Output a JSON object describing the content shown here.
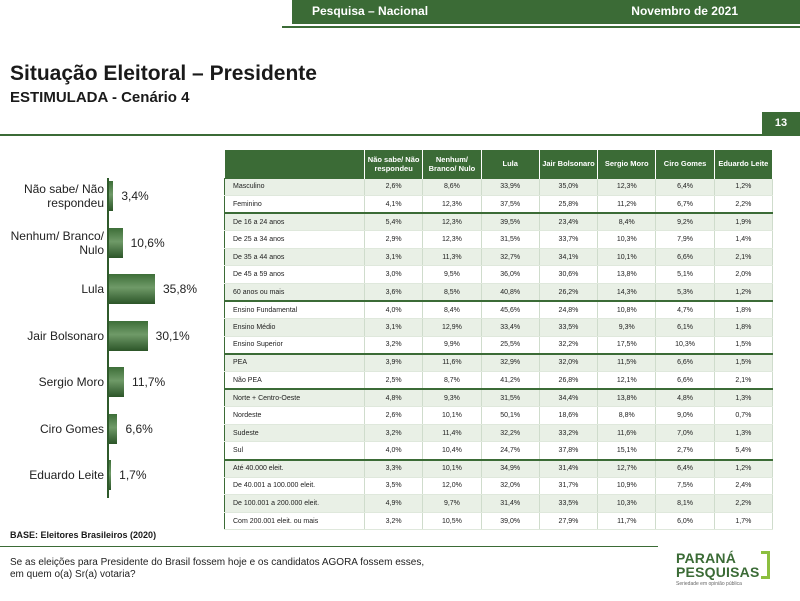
{
  "header": {
    "survey": "Pesquisa – Nacional",
    "date": "Novembro de 2021",
    "page_number": "13"
  },
  "title": "Situação Eleitoral – Presidente",
  "subtitle": "ESTIMULADA - Cenário 4",
  "chart_data": {
    "type": "bar",
    "categories": [
      "Não sabe/ Não respondeu",
      "Nenhum/ Branco/ Nulo",
      "Lula",
      "Jair Bolsonaro",
      "Sergio Moro",
      "Ciro Gomes",
      "Eduardo Leite"
    ],
    "values": [
      3.4,
      10.6,
      35.8,
      30.1,
      11.7,
      6.6,
      1.7
    ],
    "value_labels": [
      "3,4%",
      "10,6%",
      "35,8%",
      "30,1%",
      "11,7%",
      "6,6%",
      "1,7%"
    ],
    "orientation": "horizontal",
    "colors": [
      "#3b6b36"
    ]
  },
  "table": {
    "columns": [
      "Não sabe/ Não respondeu",
      "Nenhum/ Branco/ Nulo",
      "Lula",
      "Jair Bolsonaro",
      "Sergio Moro",
      "Ciro Gomes",
      "Eduardo Leite"
    ],
    "rows": [
      {
        "label": "Masculino",
        "values": [
          "2,6%",
          "8,6%",
          "33,9%",
          "35,0%",
          "12,3%",
          "6,4%",
          "1,2%"
        ],
        "group_start": true
      },
      {
        "label": "Feminino",
        "values": [
          "4,1%",
          "12,3%",
          "37,5%",
          "25,8%",
          "11,2%",
          "6,7%",
          "2,2%"
        ]
      },
      {
        "label": "De 16 a 24 anos",
        "values": [
          "5,4%",
          "12,3%",
          "39,5%",
          "23,4%",
          "8,4%",
          "9,2%",
          "1,9%"
        ],
        "group_start": true
      },
      {
        "label": "De 25 a 34 anos",
        "values": [
          "2,9%",
          "12,3%",
          "31,5%",
          "33,7%",
          "10,3%",
          "7,9%",
          "1,4%"
        ]
      },
      {
        "label": "De 35 a 44 anos",
        "values": [
          "3,1%",
          "11,3%",
          "32,7%",
          "34,1%",
          "10,1%",
          "6,6%",
          "2,1%"
        ]
      },
      {
        "label": "De 45 a 59 anos",
        "values": [
          "3,0%",
          "9,5%",
          "36,0%",
          "30,6%",
          "13,8%",
          "5,1%",
          "2,0%"
        ]
      },
      {
        "label": "60 anos ou mais",
        "values": [
          "3,6%",
          "8,5%",
          "40,8%",
          "26,2%",
          "14,3%",
          "5,3%",
          "1,2%"
        ]
      },
      {
        "label": "Ensino Fundamental",
        "values": [
          "4,0%",
          "8,4%",
          "45,6%",
          "24,8%",
          "10,8%",
          "4,7%",
          "1,8%"
        ],
        "group_start": true
      },
      {
        "label": "Ensino Médio",
        "values": [
          "3,1%",
          "12,9%",
          "33,4%",
          "33,5%",
          "9,3%",
          "6,1%",
          "1,8%"
        ]
      },
      {
        "label": "Ensino Superior",
        "values": [
          "3,2%",
          "9,9%",
          "25,5%",
          "32,2%",
          "17,5%",
          "10,3%",
          "1,5%"
        ]
      },
      {
        "label": "PEA",
        "values": [
          "3,9%",
          "11,6%",
          "32,9%",
          "32,0%",
          "11,5%",
          "6,6%",
          "1,5%"
        ],
        "group_start": true
      },
      {
        "label": "Não PEA",
        "values": [
          "2,5%",
          "8,7%",
          "41,2%",
          "26,8%",
          "12,1%",
          "6,6%",
          "2,1%"
        ]
      },
      {
        "label": "Norte + Centro-Oeste",
        "values": [
          "4,8%",
          "9,3%",
          "31,5%",
          "34,4%",
          "13,8%",
          "4,8%",
          "1,3%"
        ],
        "group_start": true
      },
      {
        "label": "Nordeste",
        "values": [
          "2,6%",
          "10,1%",
          "50,1%",
          "18,6%",
          "8,8%",
          "9,0%",
          "0,7%"
        ]
      },
      {
        "label": "Sudeste",
        "values": [
          "3,2%",
          "11,4%",
          "32,2%",
          "33,2%",
          "11,6%",
          "7,0%",
          "1,3%"
        ]
      },
      {
        "label": "Sul",
        "values": [
          "4,0%",
          "10,4%",
          "24,7%",
          "37,8%",
          "15,1%",
          "2,7%",
          "5,4%"
        ]
      },
      {
        "label": "Até 40.000 eleit.",
        "values": [
          "3,3%",
          "10,1%",
          "34,9%",
          "31,4%",
          "12,7%",
          "6,4%",
          "1,2%"
        ],
        "group_start": true
      },
      {
        "label": "De 40.001 a 100.000 eleit.",
        "values": [
          "3,5%",
          "12,0%",
          "32,0%",
          "31,7%",
          "10,9%",
          "7,5%",
          "2,4%"
        ]
      },
      {
        "label": "De 100.001 a 200.000 eleit.",
        "values": [
          "4,9%",
          "9,7%",
          "31,4%",
          "33,5%",
          "10,3%",
          "8,1%",
          "2,2%"
        ]
      },
      {
        "label": "Com 200.001 eleit. ou mais",
        "values": [
          "3,2%",
          "10,5%",
          "39,0%",
          "27,9%",
          "11,7%",
          "6,0%",
          "1,7%"
        ]
      }
    ]
  },
  "footer": {
    "base": "BASE: Eleitores Brasileiros  (2020)",
    "question_line1": "Se as eleições para Presidente do Brasil fossem hoje e os candidatos AGORA fossem esses,",
    "question_line2": "em quem o(a) Sr(a) votaria?"
  },
  "logo": {
    "line1": "PARANÁ",
    "line2": "PESQUISAS",
    "tagline": "Seriedade em opinião pública"
  },
  "colors": {
    "brand_green": "#3b6b36",
    "accent_green": "#8cbf3f",
    "row_alt": "#e9f0e6"
  }
}
